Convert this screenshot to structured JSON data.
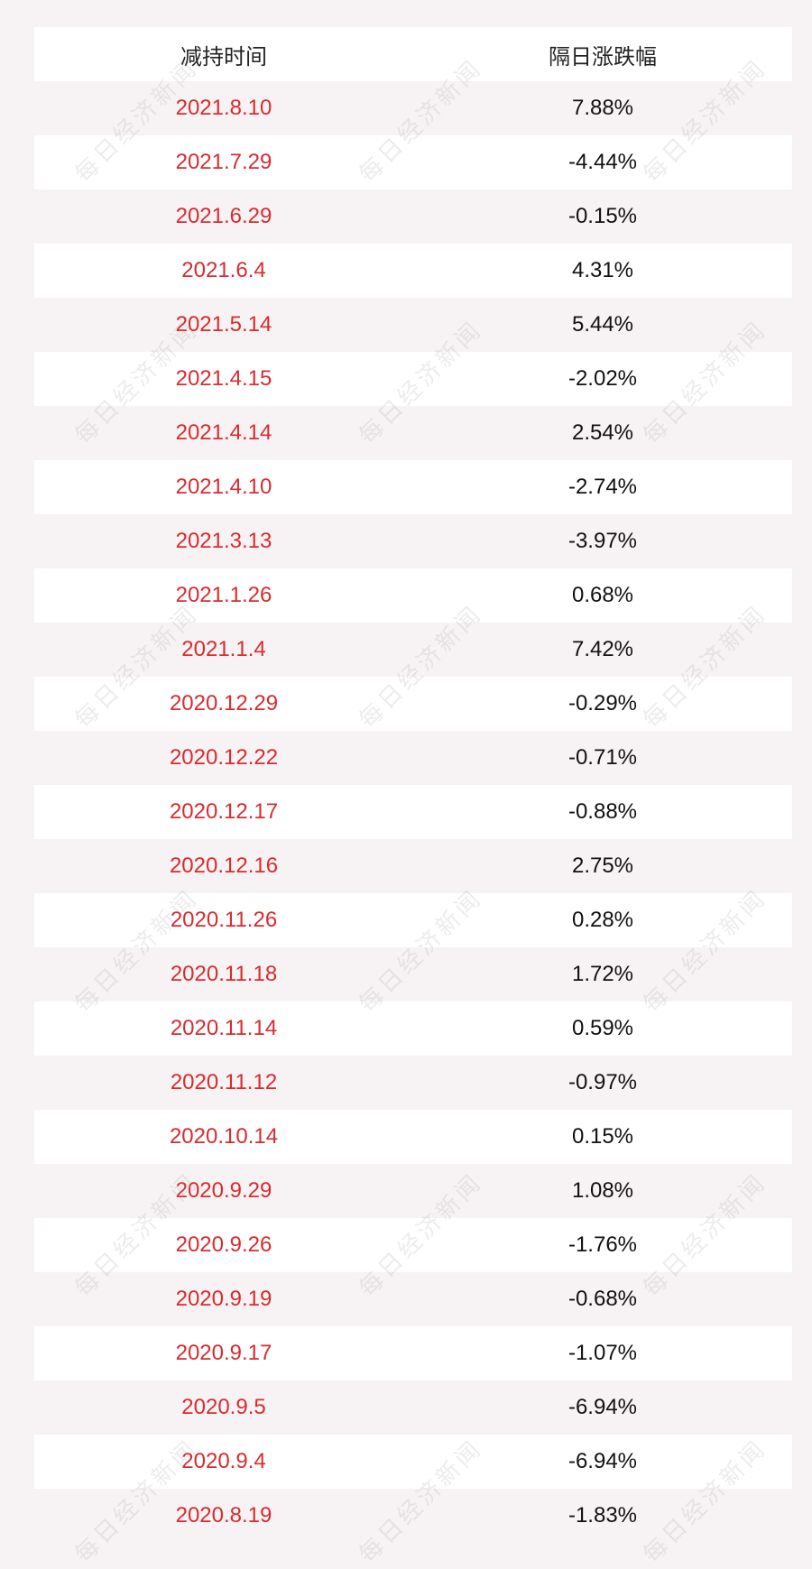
{
  "header": {
    "date_label": "减持时间",
    "change_label": "隔日涨跌幅"
  },
  "rows": [
    {
      "date": "2021.8.10",
      "change": "7.88%"
    },
    {
      "date": "2021.7.29",
      "change": "-4.44%"
    },
    {
      "date": "2021.6.29",
      "change": "-0.15%"
    },
    {
      "date": "2021.6.4",
      "change": "4.31%"
    },
    {
      "date": "2021.5.14",
      "change": "5.44%"
    },
    {
      "date": "2021.4.15",
      "change": "-2.02%"
    },
    {
      "date": "2021.4.14",
      "change": "2.54%"
    },
    {
      "date": "2021.4.10",
      "change": "-2.74%"
    },
    {
      "date": "2021.3.13",
      "change": "-3.97%"
    },
    {
      "date": "2021.1.26",
      "change": "0.68%"
    },
    {
      "date": "2021.1.4",
      "change": "7.42%"
    },
    {
      "date": "2020.12.29",
      "change": "-0.29%"
    },
    {
      "date": "2020.12.22",
      "change": "-0.71%"
    },
    {
      "date": "2020.12.17",
      "change": "-0.88%"
    },
    {
      "date": "2020.12.16",
      "change": "2.75%"
    },
    {
      "date": "2020.11.26",
      "change": "0.28%"
    },
    {
      "date": "2020.11.18",
      "change": "1.72%"
    },
    {
      "date": "2020.11.14",
      "change": "0.59%"
    },
    {
      "date": "2020.11.12",
      "change": "-0.97%"
    },
    {
      "date": "2020.10.14",
      "change": "0.15%"
    },
    {
      "date": "2020.9.29",
      "change": "1.08%"
    },
    {
      "date": "2020.9.26",
      "change": "-1.76%"
    },
    {
      "date": "2020.9.19",
      "change": "-0.68%"
    },
    {
      "date": "2020.9.17",
      "change": "-1.07%"
    },
    {
      "date": "2020.9.5",
      "change": "-6.94%"
    },
    {
      "date": "2020.9.4",
      "change": "-6.94%"
    },
    {
      "date": "2020.8.19",
      "change": "-1.83%"
    }
  ],
  "watermark": "每日经济新闻",
  "colors": {
    "date_text": "#d92b2f",
    "change_text": "#111111",
    "row_white": "#ffffff",
    "background": "#f7f3f4"
  }
}
